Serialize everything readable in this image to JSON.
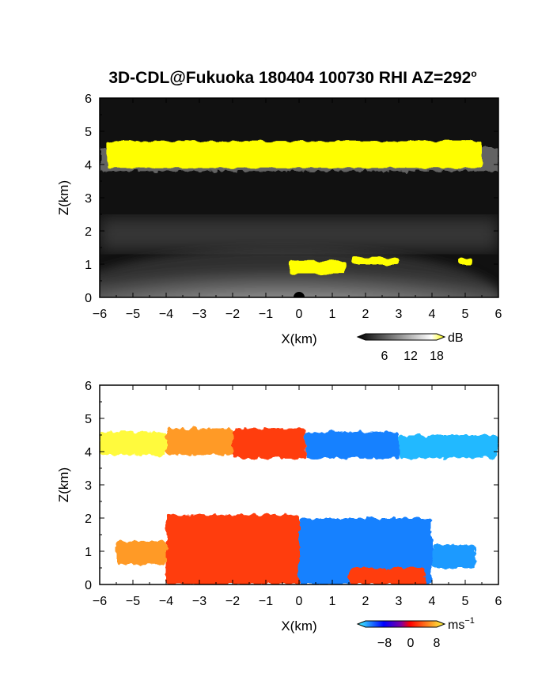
{
  "title": "3D-CDL@Fukuoka 180404 100730 RHI AZ=292",
  "title_sup": "o",
  "colors": {
    "frame": "#000000",
    "top_bg": "#111111",
    "cloud": "#ffff00"
  },
  "chart_data": [
    {
      "type": "heatmap",
      "panel": "top",
      "xlabel": "X(km)",
      "ylabel": "Z(km)",
      "xlim": [
        -6,
        6
      ],
      "ylim": [
        0,
        6
      ],
      "xticks": [
        -6,
        -5,
        -4,
        -3,
        -2,
        -1,
        0,
        1,
        2,
        3,
        4,
        5,
        6
      ],
      "yticks": [
        0,
        1,
        2,
        3,
        4,
        5,
        6
      ],
      "colorbar": {
        "unit": "dB",
        "ticks": [
          6,
          12,
          18
        ],
        "colors": [
          "#000000",
          "#ffffff",
          "#ffff00"
        ]
      },
      "layers": [
        {
          "z_bottom": 3.8,
          "z_top": 4.5,
          "x_range": [
            -6,
            6
          ],
          "level": "bright"
        },
        {
          "z_bottom": 0.0,
          "z_top": 1.4,
          "x_range": [
            -6,
            6
          ],
          "level": "bright"
        },
        {
          "z_bottom": 1.4,
          "z_top": 2.4,
          "x_range": [
            -6,
            6
          ],
          "level": "faint"
        }
      ],
      "yellow_patches": [
        {
          "x": [
            -5.8,
            5.5
          ],
          "z": [
            3.9,
            4.7
          ]
        },
        {
          "x": [
            -0.3,
            1.4
          ],
          "z": [
            0.7,
            1.1
          ]
        },
        {
          "x": [
            1.6,
            3.0
          ],
          "z": [
            1.0,
            1.2
          ]
        },
        {
          "x": [
            4.8,
            5.2
          ],
          "z": [
            1.0,
            1.2
          ]
        }
      ]
    },
    {
      "type": "heatmap",
      "panel": "bottom",
      "xlabel": "X(km)",
      "ylabel": "Z(km)",
      "xlim": [
        -6,
        6
      ],
      "ylim": [
        0,
        6
      ],
      "xticks": [
        -6,
        -5,
        -4,
        -3,
        -2,
        -1,
        0,
        1,
        2,
        3,
        4,
        5,
        6
      ],
      "yticks": [
        0,
        1,
        2,
        3,
        4,
        5,
        6
      ],
      "colorbar": {
        "unit": "ms",
        "unit_sup": "−1",
        "ticks": [
          "−8",
          "0",
          "8"
        ],
        "colors": [
          "#40ffff",
          "#0000ff",
          "#ff0000",
          "#ffff40"
        ]
      },
      "velocity_regions": [
        {
          "x": [
            -6.0,
            -4.0
          ],
          "z": [
            3.9,
            4.6
          ],
          "velocity": 8
        },
        {
          "x": [
            -4.0,
            -2.0
          ],
          "z": [
            3.9,
            4.7
          ],
          "velocity": 6
        },
        {
          "x": [
            -2.0,
            0.2
          ],
          "z": [
            3.8,
            4.7
          ],
          "velocity": 3
        },
        {
          "x": [
            0.2,
            3.0
          ],
          "z": [
            3.8,
            4.6
          ],
          "velocity": -5
        },
        {
          "x": [
            3.0,
            6.0
          ],
          "z": [
            3.8,
            4.5
          ],
          "velocity": -7
        },
        {
          "x": [
            -5.5,
            -4.0
          ],
          "z": [
            0.6,
            1.3
          ],
          "velocity": 6
        },
        {
          "x": [
            -4.0,
            0.0
          ],
          "z": [
            0.0,
            2.1
          ],
          "velocity": 3
        },
        {
          "x": [
            0.0,
            4.0
          ],
          "z": [
            0.0,
            2.0
          ],
          "velocity": -5
        },
        {
          "x": [
            1.5,
            3.8
          ],
          "z": [
            0.0,
            0.5
          ],
          "velocity": 3
        },
        {
          "x": [
            4.0,
            5.3
          ],
          "z": [
            0.5,
            1.2
          ],
          "velocity": -6
        }
      ]
    }
  ]
}
